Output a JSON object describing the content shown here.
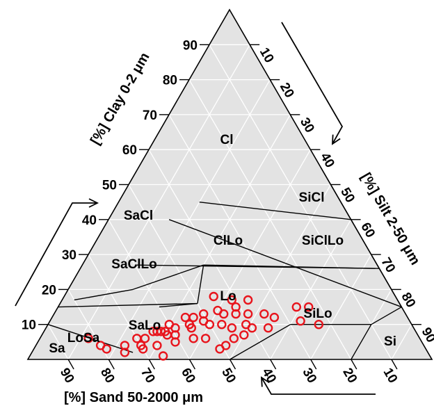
{
  "chart_data": {
    "type": "scatter",
    "subtype": "ternary-soil-texture",
    "axes": {
      "clay": {
        "title": "[%] Clay 0-2 μm",
        "ticks": [
          10,
          20,
          30,
          40,
          50,
          60,
          70,
          80,
          90
        ]
      },
      "silt": {
        "title": "[%] Silt 2-50 μm",
        "ticks": [
          10,
          20,
          30,
          40,
          50,
          60,
          70,
          80,
          90
        ]
      },
      "sand": {
        "title": "[%] Sand 50-2000 μm",
        "ticks": [
          90,
          80,
          70,
          60,
          50,
          40,
          30,
          20,
          10
        ]
      }
    },
    "classes": [
      "Cl",
      "SiCl",
      "SaCl",
      "ClLo",
      "SiClLo",
      "SaClLo",
      "Lo",
      "SiLo",
      "Si",
      "Sa",
      "LoSa",
      "SaLo"
    ],
    "grid": true,
    "marker": {
      "shape": "open-circle",
      "color": "#e8141c"
    },
    "points_silt_clay": [
      [
        37,
        18
      ],
      [
        42,
        17
      ],
      [
        46,
        17
      ],
      [
        44,
        15
      ],
      [
        40,
        14
      ],
      [
        37,
        13
      ],
      [
        35,
        12
      ],
      [
        33,
        12
      ],
      [
        42,
        13
      ],
      [
        45,
        13
      ],
      [
        48,
        13
      ],
      [
        52,
        13
      ],
      [
        55,
        12
      ],
      [
        55,
        9
      ],
      [
        51,
        9
      ],
      [
        38,
        11
      ],
      [
        35,
        10
      ],
      [
        32,
        9
      ],
      [
        30,
        10
      ],
      [
        36,
        9
      ],
      [
        40,
        10
      ],
      [
        33,
        7
      ],
      [
        31,
        7
      ],
      [
        30,
        8
      ],
      [
        29,
        8
      ],
      [
        28,
        8
      ],
      [
        27,
        8
      ],
      [
        26,
        6
      ],
      [
        24,
        6
      ],
      [
        38,
        6
      ],
      [
        34,
        5
      ],
      [
        23,
        2
      ],
      [
        26,
        4
      ],
      [
        22,
        4
      ],
      [
        18,
        3
      ],
      [
        16,
        4
      ],
      [
        12,
        6
      ],
      [
        43,
        10
      ],
      [
        46,
        9
      ],
      [
        49,
        10
      ],
      [
        50,
        7
      ],
      [
        47,
        4
      ],
      [
        46,
        3
      ],
      [
        48,
        6
      ],
      [
        41,
        6
      ],
      [
        33,
        1
      ],
      [
        30,
        4
      ],
      [
        27,
        3
      ],
      [
        62,
        11
      ],
      [
        62,
        15
      ],
      [
        59,
        15
      ],
      [
        67,
        10
      ]
    ]
  }
}
